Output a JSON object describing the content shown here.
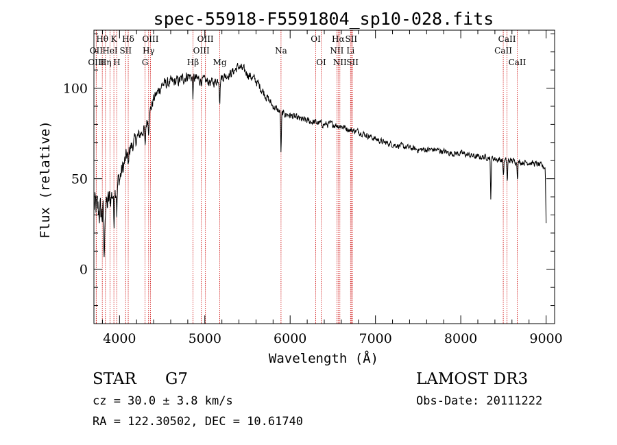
{
  "chart_data": {
    "type": "line",
    "title": "spec-55918-F5591804_sp10-028.fits",
    "xlabel": "Wavelength (Å)",
    "ylabel": "Flux (relative)",
    "xlim": [
      3700,
      9100
    ],
    "ylim": [
      -30,
      132
    ],
    "x_ticks": [
      4000,
      5000,
      6000,
      7000,
      8000,
      9000
    ],
    "x_tick_labels": [
      "4000",
      "5000",
      "6000",
      "7000",
      "8000",
      "9000"
    ],
    "y_ticks": [
      0,
      50,
      100
    ],
    "y_tick_labels": [
      "0",
      "50",
      "100"
    ],
    "spectrum_anchors": {
      "wavelength": [
        3700,
        3800,
        3900,
        4000,
        4100,
        4200,
        4300,
        4400,
        4500,
        4600,
        4700,
        4800,
        4900,
        5000,
        5100,
        5200,
        5300,
        5400,
        5500,
        5600,
        5700,
        5800,
        5900,
        6000,
        6100,
        6200,
        6300,
        6400,
        6500,
        6600,
        6700,
        6800,
        6900,
        7000,
        7100,
        7200,
        7300,
        7400,
        7500,
        7600,
        7700,
        7800,
        7900,
        8000,
        8100,
        8200,
        8300,
        8400,
        8500,
        8600,
        8700,
        8800,
        8900,
        9000
      ],
      "flux": [
        35,
        30,
        40,
        50,
        65,
        72,
        78,
        94,
        102,
        103,
        104,
        107,
        105,
        104,
        103,
        106,
        108,
        112,
        108,
        104,
        97,
        90,
        86,
        85,
        83,
        82,
        81,
        80,
        80,
        79,
        77,
        76,
        74,
        72,
        70,
        69,
        68,
        67,
        66,
        66,
        66,
        65,
        64,
        64,
        63,
        62,
        62,
        61,
        60,
        60,
        59,
        59,
        58,
        56
      ],
      "noise": [
        14,
        14,
        11,
        9,
        7,
        6,
        5,
        5,
        5,
        5,
        5,
        5,
        5,
        4,
        4,
        4,
        4,
        4,
        4,
        4,
        4,
        3,
        3,
        3,
        3,
        3,
        3,
        3,
        3,
        3,
        2.5,
        2.5,
        2.5,
        2.5,
        2.5,
        2.5,
        2.5,
        2.5,
        2.5,
        2.5,
        2.5,
        2.5,
        2.5,
        2.5,
        2.5,
        2.5,
        2.5,
        2.5,
        2.5,
        2.5,
        2.5,
        2.5,
        2.5,
        2.5
      ]
    },
    "absorption_features": [
      {
        "wavelength": 3820,
        "depth": 30
      },
      {
        "wavelength": 3934,
        "depth": 18
      },
      {
        "wavelength": 3969,
        "depth": 14
      },
      {
        "wavelength": 4102,
        "depth": 10
      },
      {
        "wavelength": 4300,
        "depth": 12
      },
      {
        "wavelength": 4341,
        "depth": 8
      },
      {
        "wavelength": 4861,
        "depth": 10
      },
      {
        "wavelength": 5175,
        "depth": 12
      },
      {
        "wavelength": 5893,
        "depth": 22
      },
      {
        "wavelength": 8352,
        "depth": 22
      },
      {
        "wavelength": 8500,
        "depth": 8
      },
      {
        "wavelength": 8545,
        "depth": 12
      },
      {
        "wavelength": 8665,
        "depth": 8
      },
      {
        "wavelength": 9000,
        "depth": 30
      }
    ],
    "spectral_lines": [
      {
        "name": "Hθ",
        "wavelength": 3798,
        "row": 0
      },
      {
        "name": "OII",
        "wavelength": 3727,
        "row": 1
      },
      {
        "name": "OIII",
        "wavelength": 3727,
        "row": 2
      },
      {
        "name": "K",
        "wavelength": 3934,
        "row": 0
      },
      {
        "name": "HeI",
        "wavelength": 3889,
        "row": 1
      },
      {
        "name": "Hη",
        "wavelength": 3835,
        "row": 2
      },
      {
        "name": "SII",
        "wavelength": 4072,
        "row": 1
      },
      {
        "name": "H",
        "wavelength": 3969,
        "row": 2
      },
      {
        "name": "Hδ",
        "wavelength": 4102,
        "row": 0
      },
      {
        "name": "OIII",
        "wavelength": 4363,
        "row": 0
      },
      {
        "name": "Hγ",
        "wavelength": 4341,
        "row": 1
      },
      {
        "name": "G",
        "wavelength": 4300,
        "row": 2
      },
      {
        "name": "Hβ",
        "wavelength": 4861,
        "row": 2
      },
      {
        "name": "OIII",
        "wavelength": 5007,
        "row": 0
      },
      {
        "name": "OIII",
        "wavelength": 4959,
        "row": 1
      },
      {
        "name": "Mg",
        "wavelength": 5175,
        "row": 2
      },
      {
        "name": "Na",
        "wavelength": 5893,
        "row": 1
      },
      {
        "name": "OI",
        "wavelength": 6300,
        "row": 0
      },
      {
        "name": "OI",
        "wavelength": 6364,
        "row": 2
      },
      {
        "name": "Hα",
        "wavelength": 6563,
        "row": 0
      },
      {
        "name": "SII",
        "wavelength": 6716,
        "row": 0
      },
      {
        "name": "NII",
        "wavelength": 6548,
        "row": 1
      },
      {
        "name": "Li",
        "wavelength": 6708,
        "row": 1
      },
      {
        "name": "NII",
        "wavelength": 6583,
        "row": 2
      },
      {
        "name": "SII",
        "wavelength": 6731,
        "row": 2
      },
      {
        "name": "CaII",
        "wavelength": 8542,
        "row": 0
      },
      {
        "name": "CaII",
        "wavelength": 8498,
        "row": 1
      },
      {
        "name": "CaII",
        "wavelength": 8662,
        "row": 2
      }
    ]
  },
  "info": {
    "object_class": "STAR",
    "subclass": "G7",
    "redshift": "cz = 30.0 ± 3.8 km/s",
    "coords": "RA = 122.30502, DEC =  10.61740",
    "survey": "LAMOST DR3",
    "obs_date": "Obs-Date: 20111222"
  },
  "colors": {
    "spectrum": "#000000",
    "line_markers": "#cc0000",
    "axis": "#000000"
  }
}
